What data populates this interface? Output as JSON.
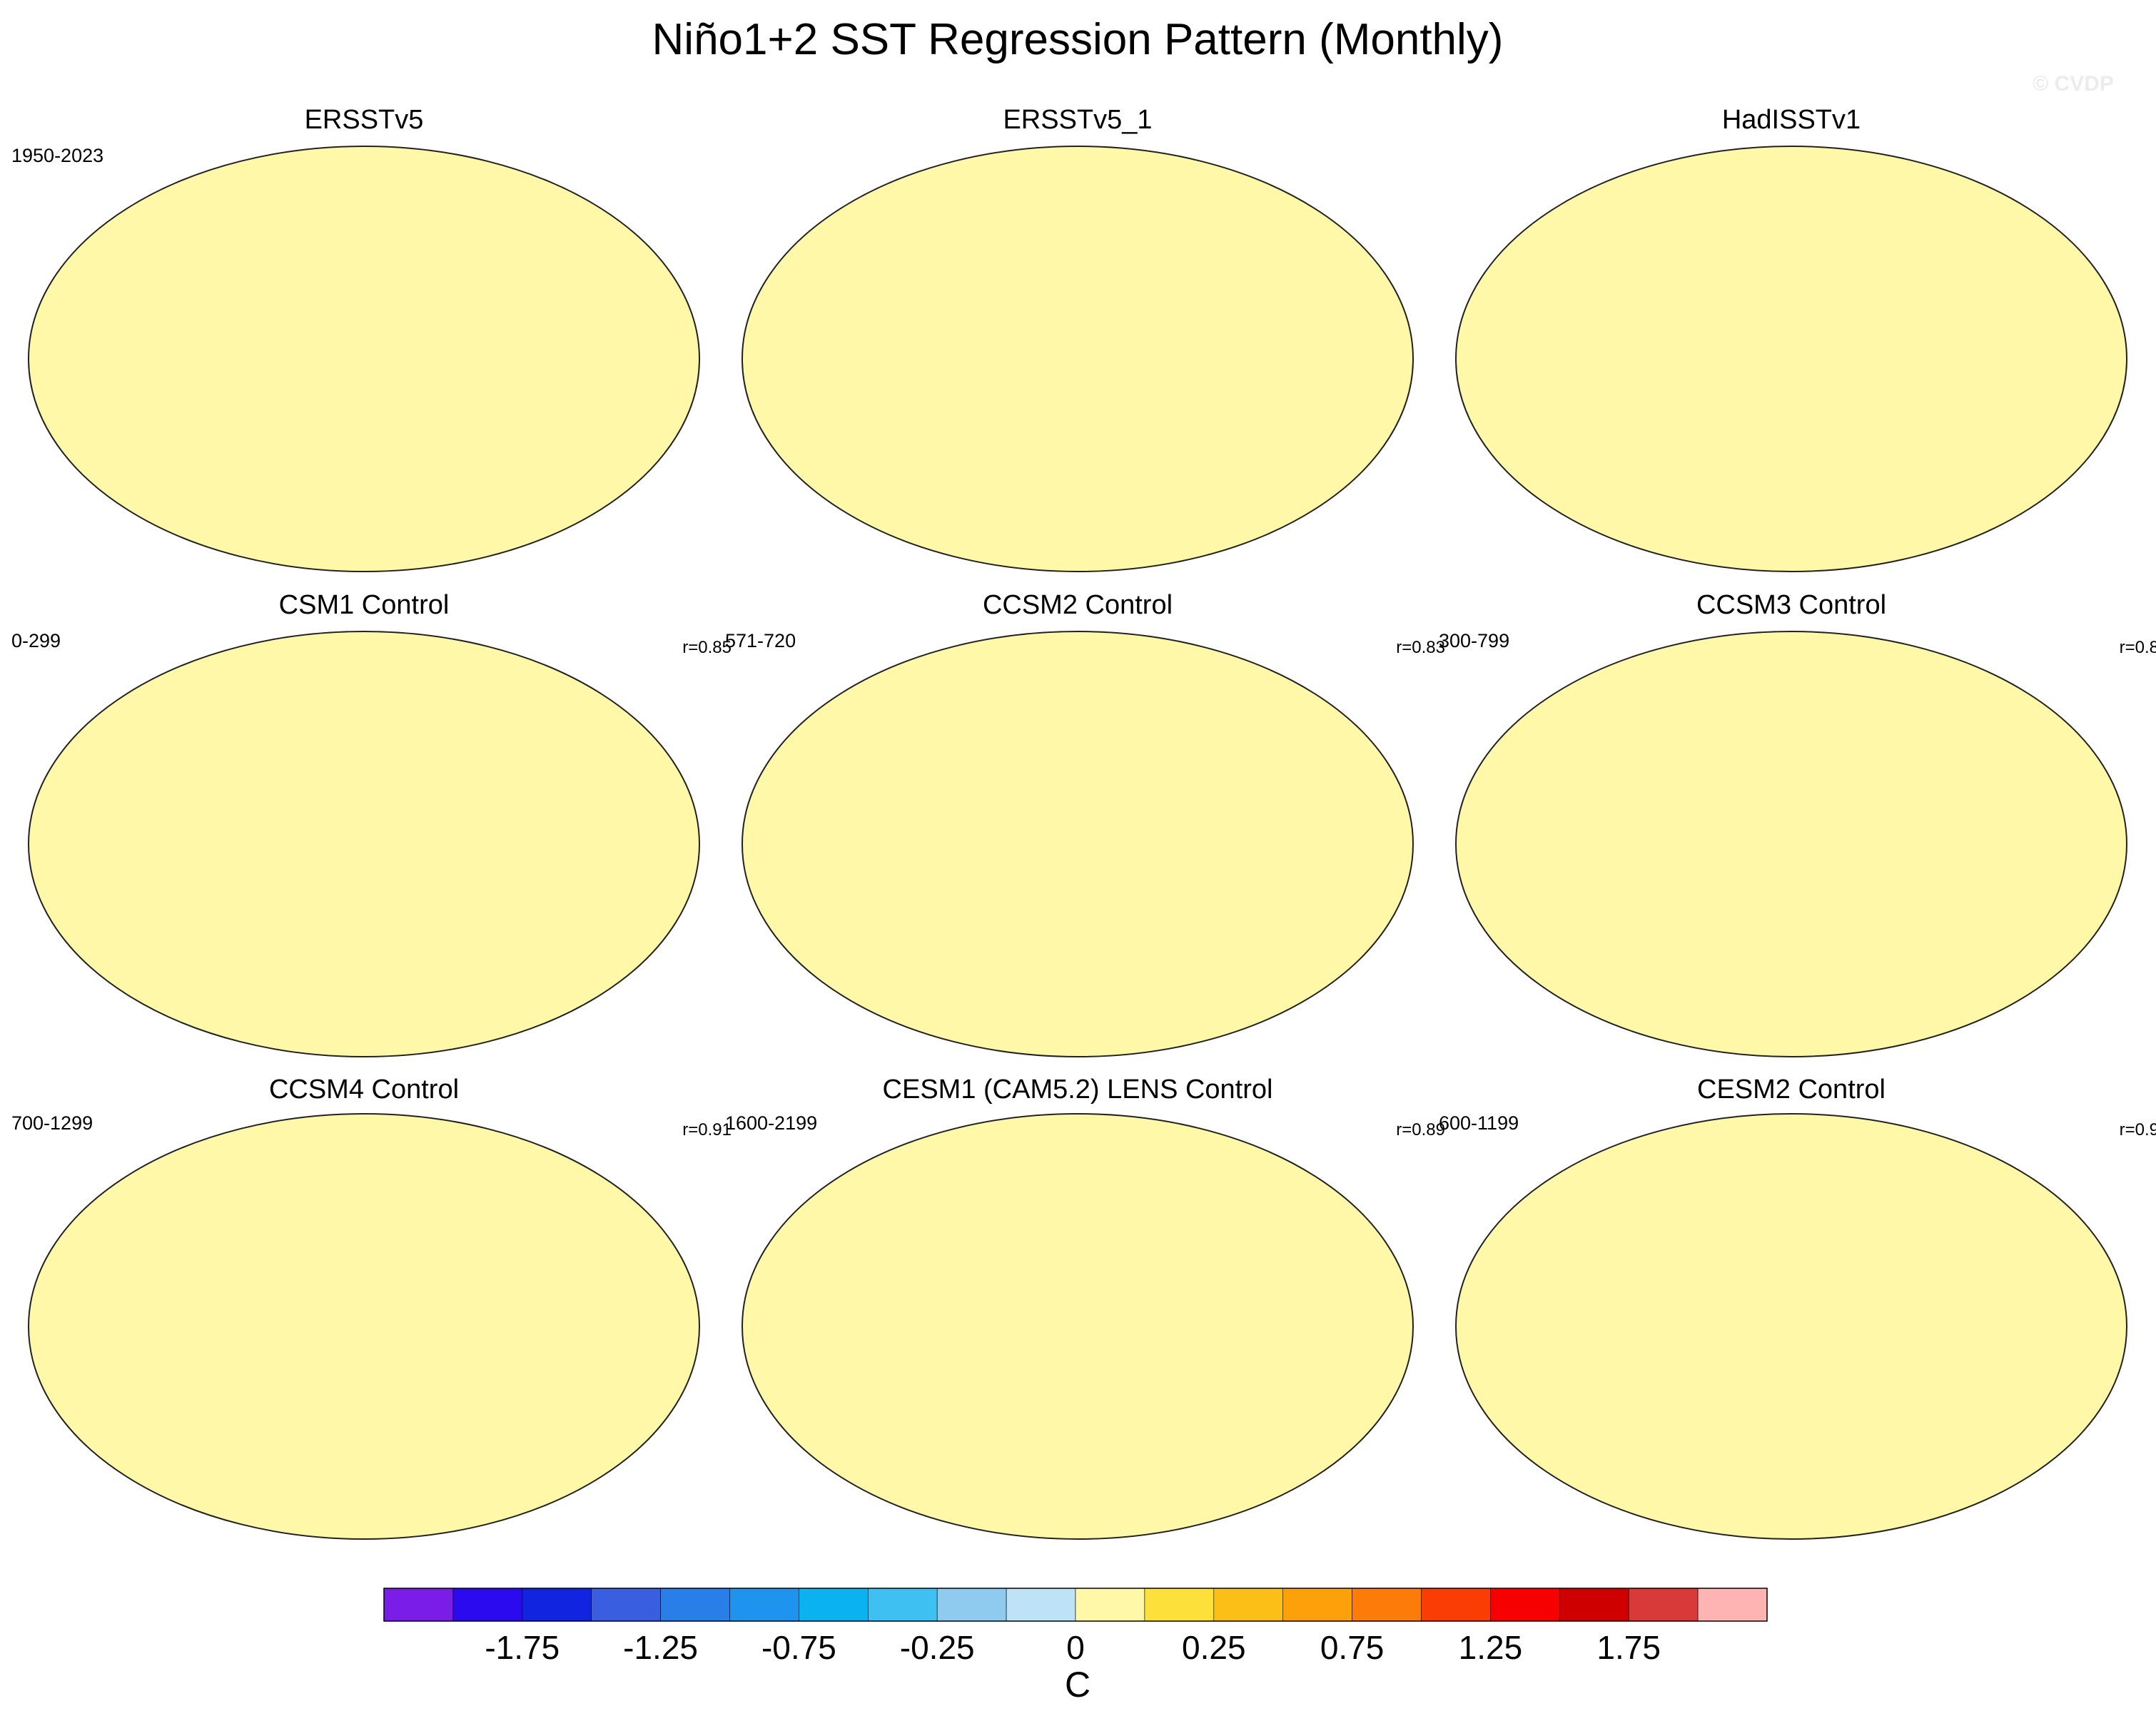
{
  "chart_data": {
    "type": "heatmap",
    "title": "Niño1+2 SST Regression Pattern (Monthly)",
    "watermark": "© CVDP",
    "projection": "Robinson global map",
    "panels": [
      {
        "name": "ERSSTv5",
        "period": "1950-2023",
        "r": ""
      },
      {
        "name": "ERSSTv5_1",
        "period": "",
        "r": ""
      },
      {
        "name": "HadISSTv1",
        "period": "",
        "r": ""
      },
      {
        "name": "CSM1 Control",
        "period": "0-299",
        "r": "r=0.85"
      },
      {
        "name": "CCSM2 Control",
        "period": "571-720",
        "r": "r=0.83"
      },
      {
        "name": "CCSM3 Control",
        "period": "300-799",
        "r": "r=0.8"
      },
      {
        "name": "CCSM4 Control",
        "period": "700-1299",
        "r": "r=0.91"
      },
      {
        "name": "CESM1 (CAM5.2) LENS Control",
        "period": "1600-2199",
        "r": "r=0.89"
      },
      {
        "name": "CESM2 Control",
        "period": "600-1199",
        "r": "r=0.9"
      }
    ],
    "colorbar": {
      "unit": "C",
      "levels": [
        -2.0,
        -1.75,
        -1.5,
        -1.25,
        -1.0,
        -0.75,
        -0.5,
        -0.25,
        0,
        0.25,
        0.5,
        0.75,
        1.0,
        1.25,
        1.5,
        1.75,
        2.0
      ],
      "tick_labels": [
        "-1.75",
        "-1.25",
        "-0.75",
        "-0.25",
        "0",
        "0.25",
        "0.75",
        "1.25",
        "1.75"
      ],
      "colors": [
        "#7a1de6",
        "#2b0aef",
        "#1124e0",
        "#3a5ee0",
        "#2a7ee8",
        "#1e94ee",
        "#0ab2ef",
        "#3ec0f3",
        "#8ecbee",
        "#bfe3f6",
        "#fff8a8",
        "#fde03a",
        "#fcbf17",
        "#fca10a",
        "#fb7c08",
        "#fa3d02",
        "#f80000",
        "#cf0000",
        "#d83a3a",
        "#ffb4b4"
      ]
    },
    "land_color": "#e3e3e3",
    "ocean_colors": {
      "neutral_positive": "#fff8a8",
      "neutral_negative": "#bfe3f6",
      "moderate_negative": "#8ecbee",
      "strong_negative": "#3ec0f3",
      "weak_positive": "#fde03a",
      "moderate_positive": "#fcbf17",
      "strong_positive": "#fca10a",
      "very_strong_positive": "#fb7c08",
      "extreme_positive": "#fa3d02",
      "peak_positive": "#f80000"
    }
  }
}
